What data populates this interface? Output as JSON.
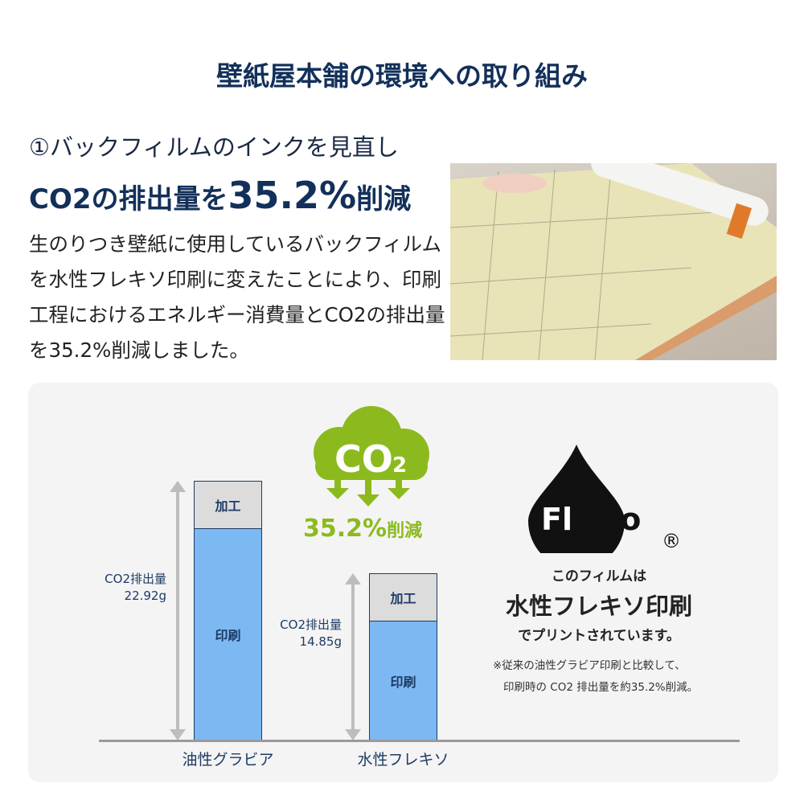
{
  "title": "壁紙屋本舗の環境への取り組み",
  "section": {
    "heading_line1": "①バックフィルムのインクを見直し",
    "heading_pre": "CO2の排出量を",
    "heading_big": "35.2%",
    "heading_post": "削減",
    "body": "生のりつき壁紙に使用しているバックフィルムを水性フレキソ印刷に変えたことにより、印刷工程におけるエネルギー消費量とCO2の排出量を35.2%削減しました。"
  },
  "co2_badge": {
    "text": "CO",
    "sub": "2",
    "reduction": "35.2%",
    "reduction_suffix": "削減",
    "color": "#8cba1e"
  },
  "flexo": {
    "logo_text": "Flexo",
    "registered": "®",
    "line1": "このフィルムは",
    "line2": "水性フレキソ印刷",
    "line3": "でプリントされています。",
    "note1": "※従来の油性グラビア印刷と比較して、",
    "note2": "印刷時の CO2 排出量を約35.2%削減。"
  },
  "chart_data": {
    "type": "bar",
    "stacked": true,
    "categories": [
      "油性グラビア",
      "水性フレキソ"
    ],
    "series": [
      {
        "name": "印刷",
        "values": [
          18.7,
          10.6
        ],
        "color": "#7cb8f2"
      },
      {
        "name": "加工",
        "values": [
          4.2,
          4.2
        ],
        "color": "#dcdcdc"
      }
    ],
    "totals": [
      22.92,
      14.85
    ],
    "total_labels": [
      [
        "CO2排出量",
        "22.92g"
      ],
      [
        "CO2排出量",
        "14.85g"
      ]
    ]
  }
}
